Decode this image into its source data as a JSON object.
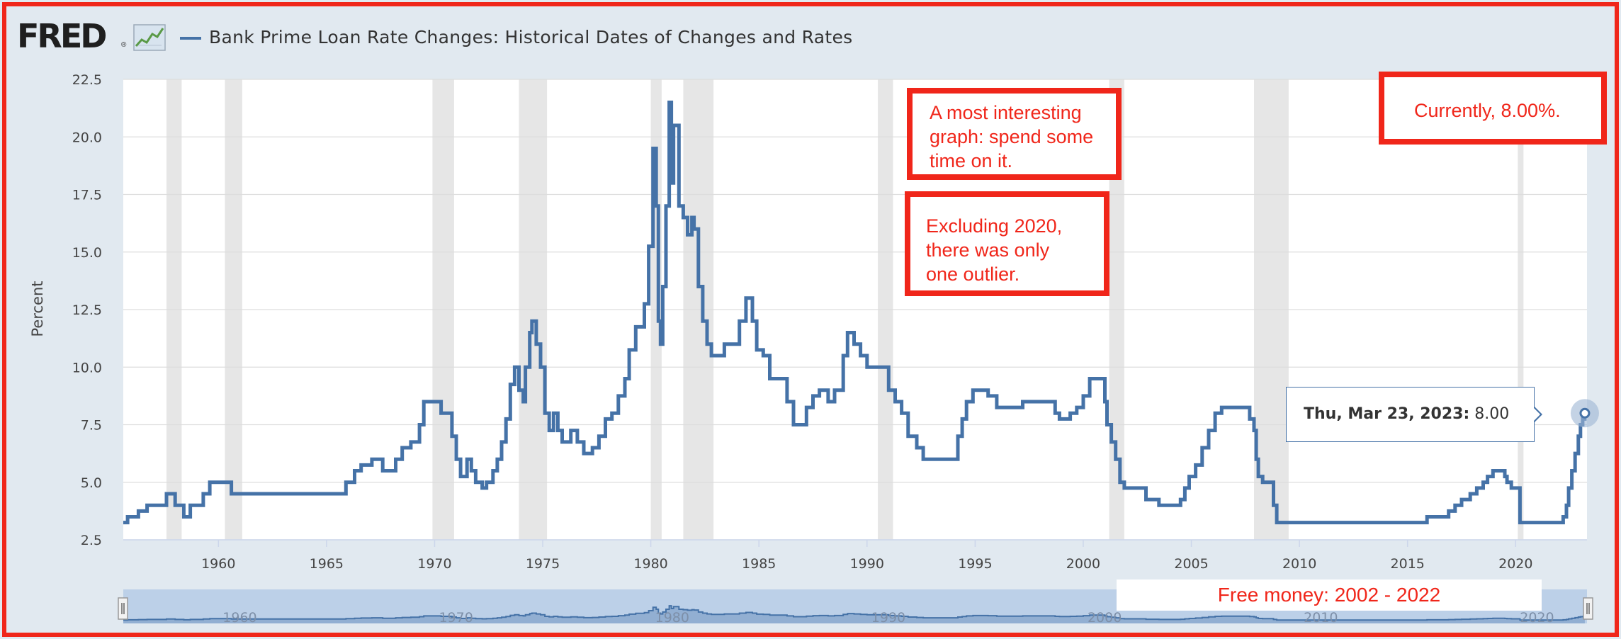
{
  "header": {
    "logo_text": "FRED",
    "logo_registered": "®",
    "logo_icon": "line-chart-icon",
    "series_title": "Bank Prime Loan Rate Changes: Historical Dates of Changes and Rates"
  },
  "colors": {
    "series": "#4572a7",
    "annotation": "#f0261a",
    "recession": "#e6e6e6",
    "background": "#e1e9f0",
    "navigator_fill": "#bcd0e8"
  },
  "annotations": {
    "interesting": [
      "A most interesting",
      "graph: spend some",
      "time on it."
    ],
    "excluding": [
      "Excluding 2020,",
      "there was only",
      "one outlier."
    ],
    "currently": "Currently, 8.00%.",
    "free_money": "Free money: 2002 - 2022"
  },
  "tooltip": {
    "date": "Thu, Mar 23, 2023:",
    "value": "8.00"
  },
  "chart_data": {
    "type": "line",
    "title": "Bank Prime Loan Rate Changes: Historical Dates of Changes and Rates",
    "ylabel": "Percent",
    "xlabel": "",
    "xlim": [
      1955.6,
      2023.3
    ],
    "ylim": [
      2.5,
      22.5
    ],
    "yticks": [
      "2.5",
      "5.0",
      "7.5",
      "10.0",
      "12.5",
      "15.0",
      "17.5",
      "20.0",
      "22.5"
    ],
    "yticks_values": [
      2.5,
      5.0,
      7.5,
      10.0,
      12.5,
      15.0,
      17.5,
      20.0,
      22.5
    ],
    "xticks": [
      "1960",
      "1965",
      "1970",
      "1975",
      "1980",
      "1985",
      "1990",
      "1995",
      "2000",
      "2005",
      "2010",
      "2015",
      "2020"
    ],
    "xticks_values": [
      1960,
      1965,
      1970,
      1975,
      1980,
      1985,
      1990,
      1995,
      2000,
      2005,
      2010,
      2015,
      2020
    ],
    "grid": true,
    "recessions": [
      [
        1957.6,
        1958.3
      ],
      [
        1960.3,
        1961.1
      ],
      [
        1969.9,
        1970.9
      ],
      [
        1973.9,
        1975.2
      ],
      [
        1980.0,
        1980.5
      ],
      [
        1981.5,
        1982.9
      ],
      [
        1990.5,
        1991.2
      ],
      [
        2001.2,
        2001.9
      ],
      [
        2007.9,
        2009.5
      ],
      [
        2020.1,
        2020.3
      ]
    ],
    "series": [
      {
        "name": "Bank Prime Loan Rate Changes",
        "x": [
          1955.6,
          1955.8,
          1956.3,
          1956.7,
          1957.6,
          1958.0,
          1958.4,
          1958.7,
          1959.3,
          1959.6,
          1959.8,
          1960.6,
          1961.0,
          1965.9,
          1966.3,
          1966.6,
          1967.1,
          1967.6,
          1968.2,
          1968.5,
          1968.9,
          1969.3,
          1969.5,
          1970.3,
          1970.8,
          1971.0,
          1971.2,
          1971.5,
          1971.7,
          1971.9,
          1972.2,
          1972.4,
          1972.7,
          1972.9,
          1973.1,
          1973.3,
          1973.5,
          1973.7,
          1973.9,
          1974.1,
          1974.2,
          1974.4,
          1974.5,
          1974.7,
          1974.9,
          1975.1,
          1975.3,
          1975.5,
          1975.7,
          1975.9,
          1976.1,
          1976.3,
          1976.6,
          1976.9,
          1977.3,
          1977.6,
          1977.9,
          1978.2,
          1978.5,
          1978.8,
          1979.0,
          1979.3,
          1979.5,
          1979.7,
          1979.9,
          1980.1,
          1980.25,
          1980.35,
          1980.45,
          1980.55,
          1980.7,
          1980.85,
          1980.95,
          1981.05,
          1981.15,
          1981.3,
          1981.5,
          1981.7,
          1981.9,
          1982.0,
          1982.2,
          1982.4,
          1982.6,
          1982.8,
          1983.0,
          1983.4,
          1983.7,
          1984.1,
          1984.4,
          1984.7,
          1984.9,
          1985.2,
          1985.5,
          1986.0,
          1986.3,
          1986.6,
          1987.2,
          1987.5,
          1987.8,
          1988.2,
          1988.5,
          1988.9,
          1989.1,
          1989.4,
          1989.7,
          1990.0,
          1990.5,
          1991.0,
          1991.3,
          1991.6,
          1991.9,
          1992.3,
          1992.6,
          1993.0,
          1994.2,
          1994.4,
          1994.6,
          1994.9,
          1995.1,
          1995.6,
          1996.0,
          1997.2,
          1998.7,
          1998.9,
          1999.4,
          1999.7,
          2000.0,
          2000.3,
          2000.5,
          2001.0,
          2001.1,
          2001.3,
          2001.5,
          2001.7,
          2001.9,
          2002.1,
          2002.9,
          2003.5,
          2004.5,
          2004.7,
          2004.9,
          2005.2,
          2005.5,
          2005.8,
          2006.1,
          2006.4,
          2006.6,
          2007.7,
          2007.9,
          2008.0,
          2008.1,
          2008.3,
          2008.8,
          2008.95,
          2015.9,
          2016.9,
          2017.2,
          2017.5,
          2017.9,
          2018.2,
          2018.5,
          2018.7,
          2018.95,
          2019.5,
          2019.6,
          2019.8,
          2020.2,
          2022.2,
          2022.35,
          2022.45,
          2022.6,
          2022.75,
          2022.9,
          2023.0,
          2023.1,
          2023.2
        ],
        "y": [
          3.25,
          3.5,
          3.75,
          4.0,
          4.5,
          4.0,
          3.5,
          4.0,
          4.5,
          5.0,
          5.0,
          4.5,
          4.5,
          5.0,
          5.5,
          5.75,
          6.0,
          5.5,
          6.0,
          6.5,
          6.75,
          7.5,
          8.5,
          8.0,
          7.0,
          6.0,
          5.25,
          6.0,
          5.5,
          5.0,
          4.75,
          5.0,
          5.5,
          6.0,
          6.75,
          7.75,
          9.25,
          10.0,
          9.0,
          8.5,
          10.0,
          11.5,
          12.0,
          11.0,
          10.0,
          8.0,
          7.25,
          8.0,
          7.25,
          6.75,
          6.75,
          7.25,
          6.75,
          6.25,
          6.5,
          7.0,
          7.75,
          8.0,
          8.75,
          9.5,
          10.75,
          11.75,
          11.75,
          12.75,
          15.25,
          19.5,
          17.0,
          12.0,
          11.0,
          13.5,
          17.0,
          21.5,
          18.0,
          20.5,
          20.5,
          17.0,
          16.5,
          15.75,
          16.5,
          16.0,
          13.5,
          12.0,
          11.0,
          10.5,
          10.5,
          11.0,
          11.0,
          12.0,
          13.0,
          12.0,
          10.75,
          10.5,
          9.5,
          9.5,
          8.5,
          7.5,
          8.25,
          8.75,
          9.0,
          8.5,
          9.0,
          10.5,
          11.5,
          11.0,
          10.5,
          10.0,
          10.0,
          9.0,
          8.5,
          8.0,
          7.0,
          6.5,
          6.0,
          6.0,
          7.0,
          7.75,
          8.5,
          9.0,
          9.0,
          8.75,
          8.25,
          8.5,
          8.0,
          7.75,
          8.0,
          8.25,
          8.75,
          9.5,
          9.5,
          8.5,
          7.5,
          6.75,
          6.0,
          5.0,
          4.75,
          4.75,
          4.25,
          4.0,
          4.25,
          4.75,
          5.25,
          5.75,
          6.5,
          7.25,
          8.0,
          8.25,
          8.25,
          7.75,
          7.25,
          6.0,
          5.25,
          5.0,
          4.0,
          3.25,
          3.5,
          3.75,
          4.0,
          4.25,
          4.5,
          4.75,
          5.0,
          5.25,
          5.5,
          5.25,
          5.0,
          4.75,
          3.25,
          3.5,
          4.0,
          4.75,
          5.5,
          6.25,
          7.0,
          7.5,
          7.75,
          8.0
        ]
      }
    ],
    "navigator": {
      "xticks": [
        "1960",
        "1970",
        "1980",
        "1990",
        "2000",
        "2010",
        "2020"
      ],
      "xticks_values": [
        1960,
        1970,
        1980,
        1990,
        2000,
        2010,
        2020
      ]
    }
  }
}
